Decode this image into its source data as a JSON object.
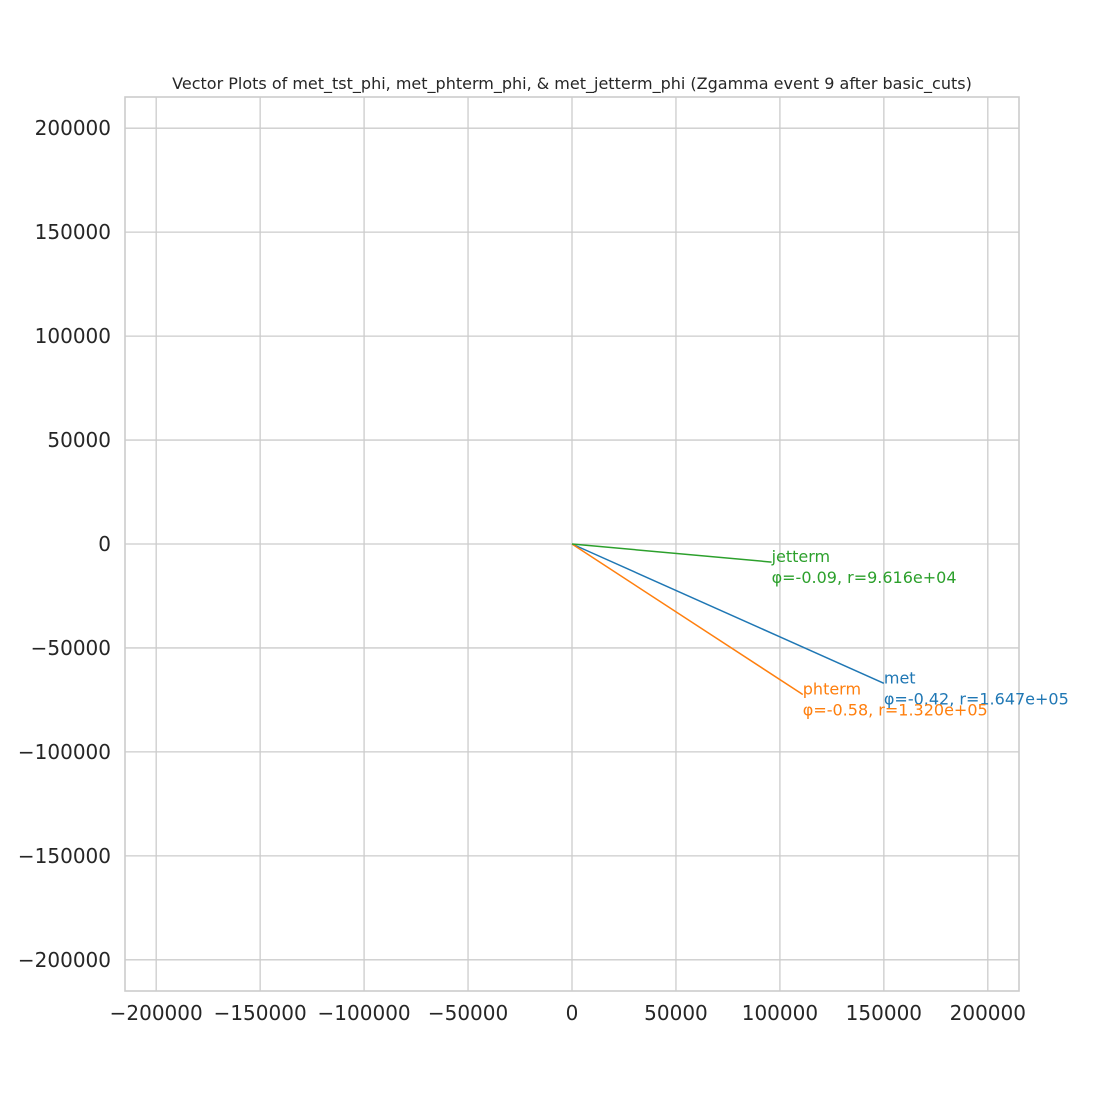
{
  "chart_data": {
    "type": "line",
    "title": "Vector Plots of met_tst_phi, met_phterm_phi, & met_jetterm_phi (Zgamma event 9 after basic_cuts)",
    "xlabel": "",
    "ylabel": "",
    "xlim": [
      -215000,
      215000
    ],
    "ylim": [
      -215000,
      215000
    ],
    "x_ticks": [
      -200000,
      -150000,
      -100000,
      -50000,
      0,
      50000,
      100000,
      150000,
      200000
    ],
    "y_ticks": [
      -200000,
      -150000,
      -100000,
      -50000,
      0,
      50000,
      100000,
      150000,
      200000
    ],
    "x_tick_labels": [
      "−200000",
      "−150000",
      "−100000",
      "−50000",
      "0",
      "50000",
      "100000",
      "150000",
      "200000"
    ],
    "y_tick_labels": [
      "−200000",
      "−150000",
      "−100000",
      "−50000",
      "0",
      "50000",
      "100000",
      "150000",
      "200000"
    ],
    "grid": true,
    "series": [
      {
        "name": "met",
        "phi": -0.42,
        "r": 164700,
        "label": "φ=-0.42, r=1.647e+05",
        "color": "#1f77b4",
        "x": [
          0,
          150000
        ],
        "y": [
          0,
          -67000
        ]
      },
      {
        "name": "phterm",
        "phi": -0.58,
        "r": 132000,
        "label": "φ=-0.58, r=1.320e+05",
        "color": "#ff7f0e",
        "x": [
          0,
          111000
        ],
        "y": [
          0,
          -72400
        ]
      },
      {
        "name": "jetterm",
        "phi": -0.09,
        "r": 96160,
        "label": "φ=-0.09, r=9.616e+04",
        "color": "#2ca02c",
        "x": [
          0,
          96000
        ],
        "y": [
          0,
          -8700
        ]
      }
    ]
  }
}
